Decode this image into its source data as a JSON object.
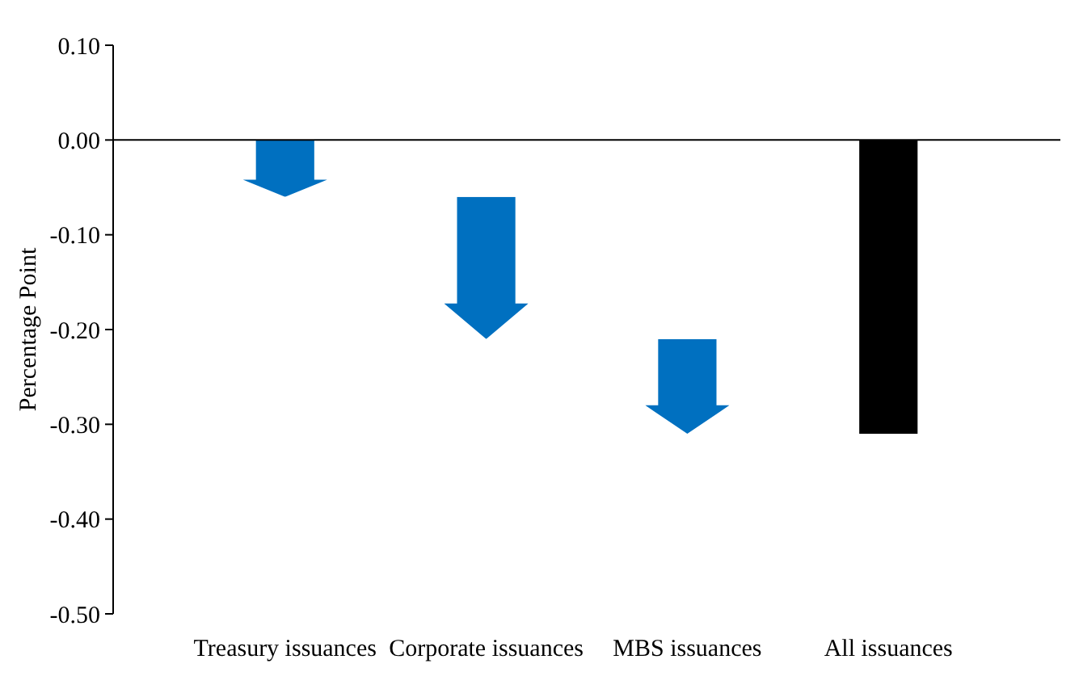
{
  "chart_data": {
    "type": "bar",
    "ylabel": "Percentage Point",
    "categories": [
      "Treasury issuances",
      "Corporate issuances",
      "MBS issuances",
      "All issuances"
    ],
    "series": [
      {
        "color": "#0070c0",
        "values": [
          -0.06,
          -0.15,
          -0.1,
          null
        ],
        "base": [
          0,
          -0.06,
          -0.21,
          null
        ]
      },
      {
        "color": "#000000",
        "values": [
          null,
          null,
          null,
          -0.31
        ]
      }
    ],
    "ylim": [
      -0.5,
      0.1
    ],
    "yticks": [
      {
        "value": 0.1,
        "label": "0.10"
      },
      {
        "value": 0,
        "label": "0.00"
      },
      {
        "value": -0.1,
        "label": "-0.10"
      },
      {
        "value": -0.2,
        "label": "-0.20"
      },
      {
        "value": -0.3,
        "label": "-0.30"
      },
      {
        "value": -0.4,
        "label": "-0.40"
      },
      {
        "value": -0.5,
        "label": "-0.50"
      }
    ]
  }
}
